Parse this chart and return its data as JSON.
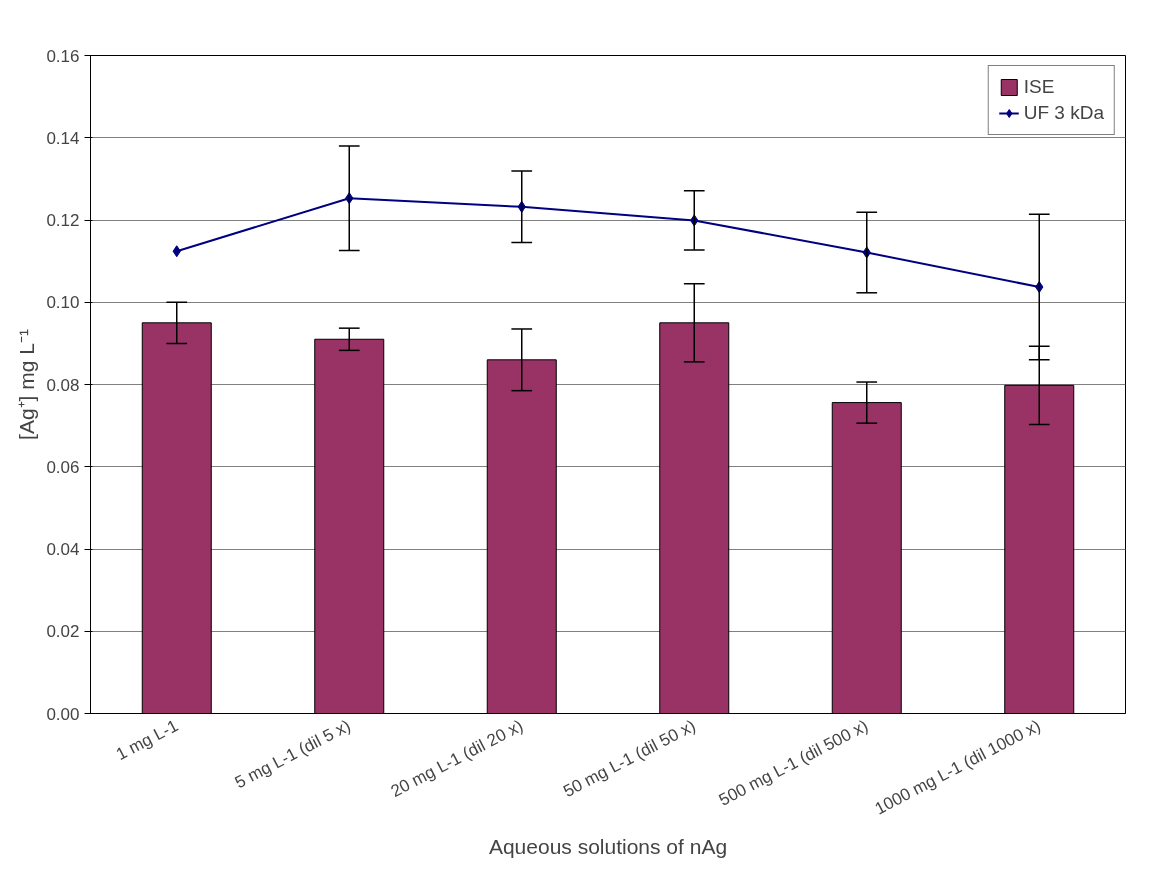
{
  "chart_data": {
    "type": "bar",
    "xlabel": "Aqueous solutions of nAg",
    "ylabel": "[Ag⁺] mg L⁻¹",
    "categories": [
      "1 mg L-1",
      "5 mg L-1 (dil 5 x)",
      "20 mg L-1 (dil 20 x)",
      "50 mg L-1 (dil 50 x)",
      "500 mg L-1 (dil 500 x)",
      "1000 mg L-1 (dil 1000 x)"
    ],
    "series": [
      {
        "name": "ISE",
        "color": "#993366",
        "values": [
          0.095,
          0.091,
          0.086,
          0.095,
          0.0756,
          0.0798
        ],
        "errors": [
          0.005,
          0.0027,
          0.0075,
          0.0095,
          0.005,
          0.0095
        ]
      },
      {
        "name": "UF 3 kDa",
        "type": "line",
        "color": "#000080",
        "marker": "diamond",
        "values": [
          0.1124,
          0.1253,
          0.1232,
          0.1199,
          0.1121,
          0.1037
        ],
        "errors": [
          null,
          0.0127,
          0.0087,
          0.0072,
          0.0098,
          0.0177
        ]
      }
    ],
    "ylim": [
      0,
      0.16
    ],
    "yticks": [
      {
        "value": 0,
        "label": "0.00"
      },
      {
        "value": 0.02,
        "label": "0.02"
      },
      {
        "value": 0.04,
        "label": "0.04"
      },
      {
        "value": 0.06,
        "label": "0.06"
      },
      {
        "value": 0.08,
        "label": "0.08"
      },
      {
        "value": 0.1,
        "label": "0.10"
      },
      {
        "value": 0.12,
        "label": "0.12"
      },
      {
        "value": 0.14,
        "label": "0.14"
      },
      {
        "value": 0.16,
        "label": "0.16"
      }
    ],
    "grid": "y",
    "legend": "top right"
  }
}
